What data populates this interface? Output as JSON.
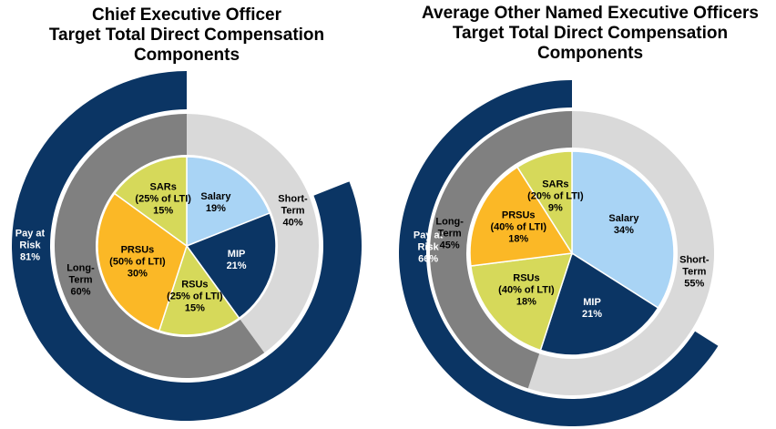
{
  "chart_data": [
    {
      "type": "nested_pie",
      "title": [
        "Chief Executive Officer",
        "Target Total Direct Compensation",
        "Components"
      ],
      "outer": {
        "labels": [
          "Pay at Risk"
        ],
        "values": [
          81
        ],
        "value_labels": [
          "81%"
        ],
        "colors": [
          "#0b3564"
        ],
        "text_colors": [
          "#ffffff"
        ]
      },
      "middle": {
        "labels": [
          "Short-Term",
          "Long-Term"
        ],
        "values": [
          40,
          60
        ],
        "value_labels": [
          "40%",
          "60%"
        ],
        "colors": [
          "#d9d9d9",
          "#808080"
        ],
        "text_colors": [
          "#000000",
          "#000000"
        ]
      },
      "inner": {
        "labels": [
          "Salary",
          "MIP",
          "RSUs",
          "PRSUs",
          "SARs"
        ],
        "notes": [
          null,
          null,
          "(25% of LTI)",
          "(50% of LTI)",
          "(25% of LTI)"
        ],
        "values": [
          19,
          21,
          15,
          30,
          15
        ],
        "value_labels": [
          "19%",
          "21%",
          "15%",
          "30%",
          "15%"
        ],
        "colors": [
          "#a9d4f5",
          "#0b3564",
          "#d6d95a",
          "#fbb826",
          "#d6d95a"
        ],
        "text_colors": [
          "#000000",
          "#ffffff",
          "#000000",
          "#000000",
          "#000000"
        ]
      }
    },
    {
      "type": "nested_pie",
      "title": [
        "Average Other Named Executive Officers",
        "Target Total Direct Compensation",
        "Components"
      ],
      "outer": {
        "labels": [
          "Pay at Risk"
        ],
        "values": [
          66
        ],
        "value_labels": [
          "66%"
        ],
        "colors": [
          "#0b3564"
        ],
        "text_colors": [
          "#ffffff"
        ]
      },
      "middle": {
        "labels": [
          "Short-Term",
          "Long-Term"
        ],
        "values": [
          55,
          45
        ],
        "value_labels": [
          "55%",
          "45%"
        ],
        "colors": [
          "#d9d9d9",
          "#808080"
        ],
        "text_colors": [
          "#000000",
          "#000000"
        ]
      },
      "inner": {
        "labels": [
          "Salary",
          "MIP",
          "RSUs",
          "PRSUs",
          "SARs"
        ],
        "notes": [
          null,
          null,
          "(40% of LTI)",
          "(40% of LTI)",
          "(20% of LTI)"
        ],
        "values": [
          34,
          21,
          18,
          18,
          9
        ],
        "value_labels": [
          "34%",
          "21%",
          "18%",
          "18%",
          "9%"
        ],
        "colors": [
          "#a9d4f5",
          "#0b3564",
          "#d6d95a",
          "#fbb826",
          "#d6d95a"
        ],
        "text_colors": [
          "#000000",
          "#ffffff",
          "#000000",
          "#000000",
          "#000000"
        ]
      }
    }
  ]
}
